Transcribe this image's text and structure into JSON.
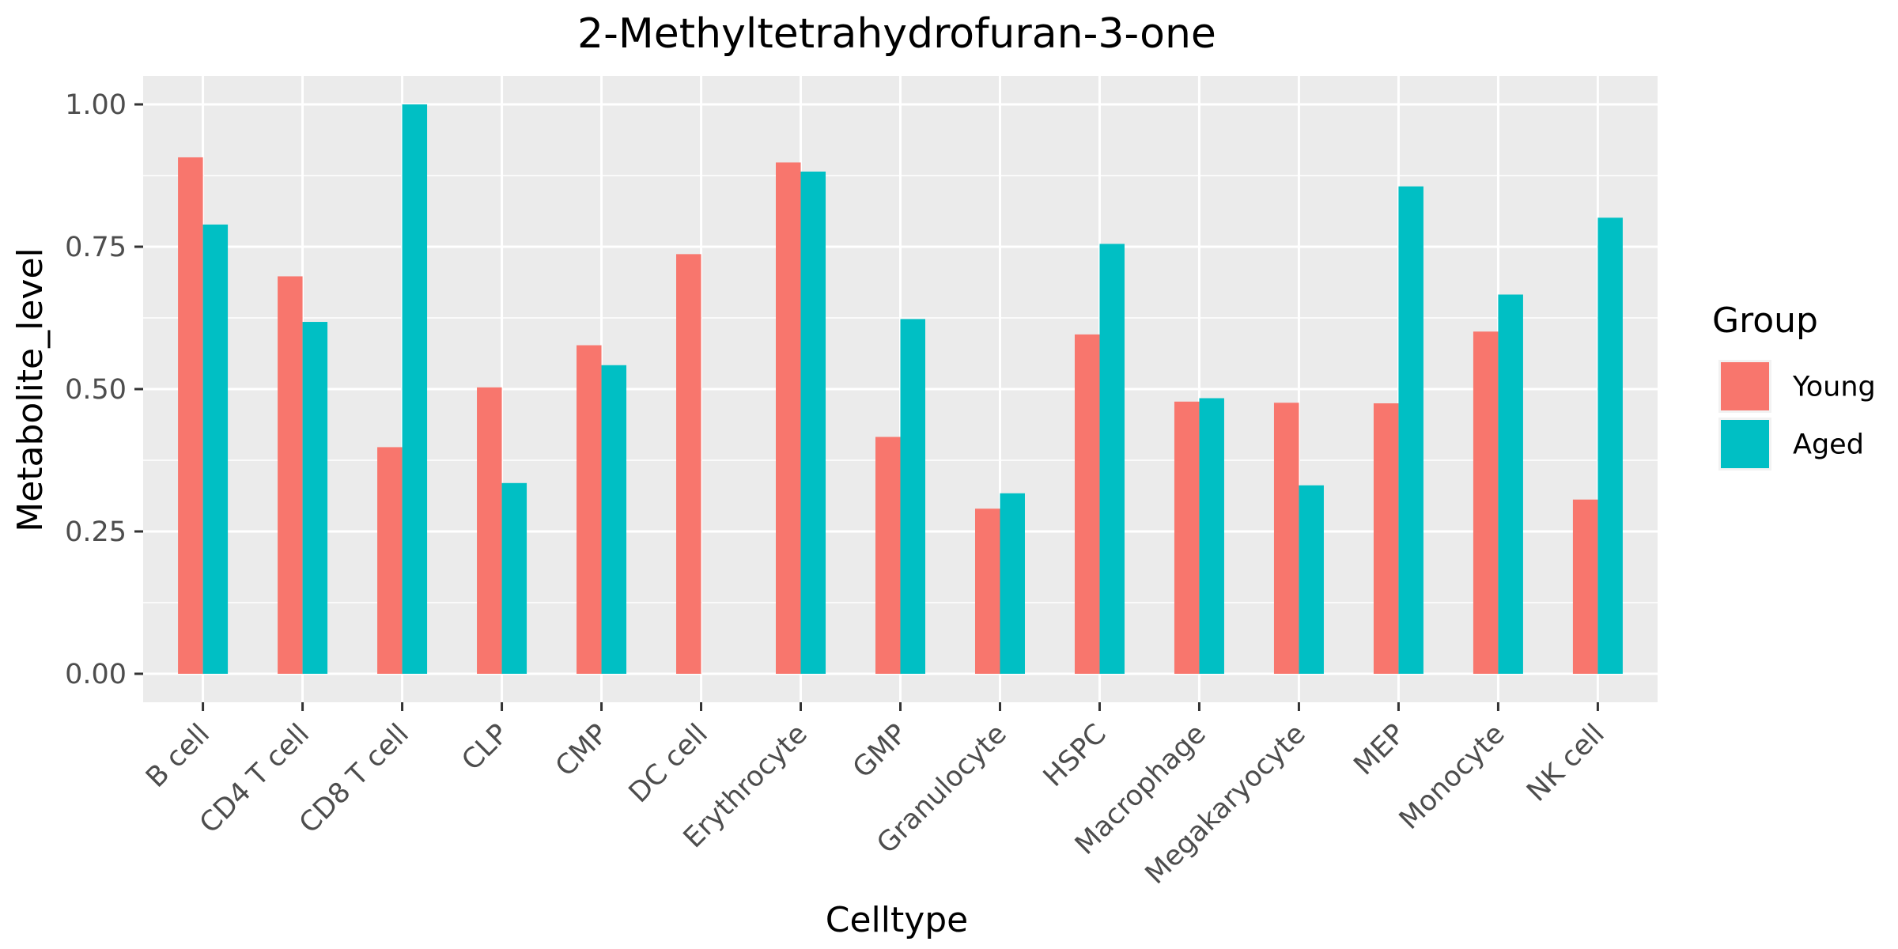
{
  "chart_data": {
    "type": "bar",
    "title": "2-Methyltetrahydrofuran-3-one",
    "xlabel": "Celltype",
    "ylabel": "Metabolite_level",
    "ylim": [
      -0.05,
      1.05
    ],
    "yticks": [
      0.0,
      0.25,
      0.5,
      0.75,
      1.0
    ],
    "ytick_labels": [
      "0.00",
      "0.25",
      "0.50",
      "0.75",
      "1.00"
    ],
    "categories": [
      "B cell",
      "CD4 T cell",
      "CD8 T cell",
      "CLP",
      "CMP",
      "DC cell",
      "Erythrocyte",
      "GMP",
      "Granulocyte",
      "HSPC",
      "Macrophage",
      "Megakaryocyte",
      "MEP",
      "Monocyte",
      "NK cell"
    ],
    "series": [
      {
        "name": "Young",
        "color": "#F8766D",
        "values": [
          0.907,
          0.698,
          0.398,
          0.503,
          0.577,
          0.737,
          0.898,
          0.416,
          0.29,
          0.596,
          0.478,
          0.476,
          0.475,
          0.601,
          0.306
        ]
      },
      {
        "name": "Aged",
        "color": "#00BFC4",
        "values": [
          0.789,
          0.618,
          1.0,
          0.335,
          0.542,
          null,
          0.882,
          0.623,
          0.317,
          0.755,
          0.484,
          0.331,
          0.856,
          0.666,
          0.801
        ]
      }
    ],
    "grid": true,
    "legend": {
      "title": "Group",
      "position": "right"
    },
    "panel_background": "#EBEBEB",
    "gridline_color": "#FFFFFF"
  }
}
